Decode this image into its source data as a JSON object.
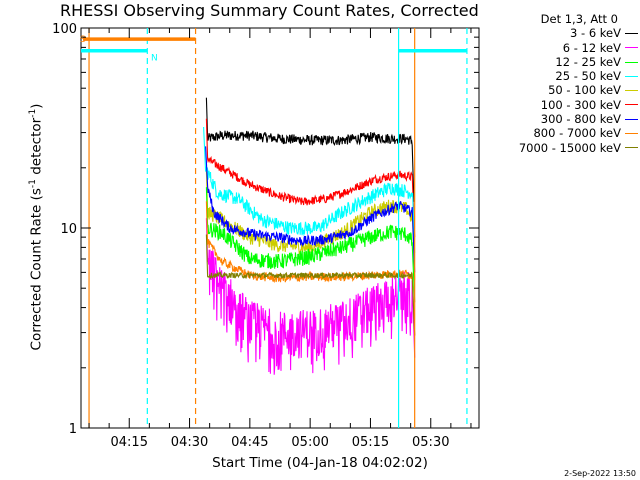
{
  "chart_data": {
    "type": "line",
    "title": "RHESSI Observing Summary Count Rates, Corrected",
    "xlabel": "Start Time (04-Jan-18 04:02:02)",
    "ylabel_main": "Corrected Count Rate (s",
    "ylabel_sup1": "-1",
    "ylabel_mid": " detector",
    "ylabel_sup2": "-1",
    "ylabel_end": ")",
    "yscale": "log",
    "ylim": [
      1,
      100
    ],
    "y_ticks": [
      1,
      10,
      100
    ],
    "y_tick_labels": [
      "1",
      "10",
      "100"
    ],
    "x_unit": "minutes after 04:00 UT",
    "xlim": [
      3,
      102
    ],
    "x_ticks": [
      15,
      30,
      45,
      60,
      75,
      90
    ],
    "x_tick_labels": [
      "04:15",
      "04:30",
      "04:45",
      "05:00",
      "05:15",
      "05:30"
    ],
    "legend_title": "Det 1,3, Att 0",
    "legend_placement": "right, outside plot",
    "series": [
      {
        "name": "3 - 6 keV",
        "color": "#000000",
        "start": 34.2,
        "end": 85.8,
        "noise": 0.06,
        "x": [
          34.5,
          38,
          45,
          52,
          60,
          68,
          75,
          80,
          84,
          85.5
        ],
        "y": [
          28,
          29,
          29,
          28,
          27.5,
          27.5,
          28.5,
          28,
          28,
          27
        ]
      },
      {
        "name": "6 - 12 keV",
        "color": "#ff00ff",
        "start": 34.2,
        "end": 86,
        "noise": 0.28,
        "x": [
          34.5,
          38,
          45,
          52,
          60,
          68,
          75,
          80,
          84,
          85.5
        ],
        "y": [
          7,
          5,
          3.4,
          3,
          3.1,
          3.4,
          4,
          4.6,
          4.8,
          4.5
        ]
      },
      {
        "name": "12 - 25 keV",
        "color": "#00ff00",
        "start": 34.2,
        "end": 86,
        "noise": 0.09,
        "x": [
          34.5,
          38,
          45,
          52,
          60,
          68,
          75,
          80,
          84,
          85.5
        ],
        "y": [
          10,
          9.5,
          7,
          6.8,
          7.2,
          8,
          9,
          9.6,
          9.3,
          8.5
        ]
      },
      {
        "name": "25 - 50 keV",
        "color": "#00ffff",
        "start": 33.5,
        "end": 86,
        "noise": 0.08,
        "x": [
          34,
          37,
          42,
          48,
          55,
          62,
          68,
          74,
          80,
          85.5
        ],
        "y": [
          20,
          15,
          14,
          11,
          10,
          10,
          12,
          14,
          16,
          15
        ]
      },
      {
        "name": "50 - 100 keV",
        "color": "#cccc00",
        "start": 34.2,
        "end": 86,
        "noise": 0.08,
        "x": [
          34.5,
          38,
          45,
          52,
          60,
          68,
          75,
          80,
          84,
          85.5
        ],
        "y": [
          12,
          11,
          9,
          8.2,
          8,
          9.5,
          12,
          13,
          12.5,
          11
        ]
      },
      {
        "name": "100 - 300 keV",
        "color": "#ff0000",
        "start": 34.2,
        "end": 86,
        "noise": 0.05,
        "x": [
          34.5,
          38,
          45,
          52,
          58,
          64,
          70,
          76,
          82,
          85.5
        ],
        "y": [
          22,
          20,
          16.5,
          14.5,
          13.5,
          14,
          15.5,
          17.5,
          18.5,
          18
        ]
      },
      {
        "name": "300 - 800 keV",
        "color": "#0000ff",
        "start": 34,
        "end": 86,
        "noise": 0.06,
        "x": [
          34.5,
          36,
          40,
          46,
          52,
          58,
          64,
          70,
          76,
          82,
          85.5
        ],
        "y": [
          16,
          12,
          10,
          9.3,
          9,
          8.6,
          8.8,
          9.5,
          11.5,
          13,
          12
        ]
      },
      {
        "name": "800 - 7000 keV",
        "color": "#ff8000",
        "start": 34.2,
        "end": 86,
        "noise": 0.05,
        "x": [
          34.5,
          38,
          45,
          52,
          60,
          68,
          75,
          80,
          84,
          85.5
        ],
        "y": [
          8.5,
          6.8,
          5.8,
          5.6,
          5.7,
          5.7,
          5.8,
          5.9,
          5.9,
          5.8
        ]
      },
      {
        "name": "7000 - 15000 keV",
        "color": "#808000",
        "start": 34.2,
        "end": 86,
        "noise": 0.03,
        "x": [
          34.5,
          45,
          60,
          75,
          85.5
        ],
        "y": [
          5.8,
          5.8,
          5.8,
          5.8,
          5.8
        ]
      }
    ],
    "flag_markers": [
      {
        "label": "S",
        "color": "#ff8000",
        "y_value": 88,
        "x_start": 3.5,
        "x_end": 31.5
      },
      {
        "label": "N",
        "color": "#00ffff",
        "y_value": 77,
        "x_start": 3,
        "x_end": 19.5
      },
      {
        "label": "",
        "color": "#00ffff",
        "y_value": 77,
        "x_start": 82,
        "x_end": 99
      }
    ],
    "vertical_lines": [
      {
        "x": 5,
        "color": "#ff8000",
        "style": "solid"
      },
      {
        "x": 19.5,
        "color": "#00ffff",
        "style": "dashed"
      },
      {
        "x": 31.5,
        "color": "#ff8000",
        "style": "dashed"
      },
      {
        "x": 82,
        "color": "#00ffff",
        "style": "solid"
      },
      {
        "x": 86,
        "color": "#ff8000",
        "style": "solid"
      },
      {
        "x": 99,
        "color": "#00ffff",
        "style": "dashed"
      }
    ]
  },
  "footer_date": "2-Sep-2022 13:50"
}
